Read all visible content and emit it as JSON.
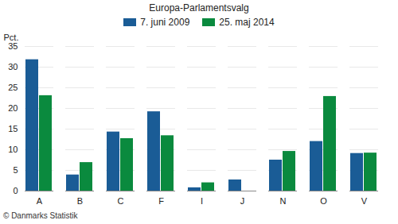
{
  "chart_data": {
    "type": "bar",
    "title": "Europa-Parlamentsvalg",
    "y_label": "Pct.",
    "caption": "© Danmarks Statistik",
    "categories": [
      "A",
      "B",
      "C",
      "F",
      "I",
      "J",
      "N",
      "O",
      "V"
    ],
    "series": [
      {
        "name": "7. juni 2009",
        "color": "#1a5c96",
        "values": [
          31.8,
          3.9,
          14.3,
          19.2,
          0.8,
          2.7,
          7.5,
          12.0,
          9.1
        ]
      },
      {
        "name": "25. maj 2014",
        "color": "#0a8a3e",
        "values": [
          23.1,
          6.9,
          12.7,
          13.4,
          2.0,
          null,
          9.6,
          22.9,
          9.2
        ]
      }
    ],
    "ylim": [
      0,
      35
    ],
    "yticks": [
      0,
      5,
      10,
      15,
      20,
      25,
      30,
      35
    ],
    "grid": true,
    "legend": "top"
  }
}
